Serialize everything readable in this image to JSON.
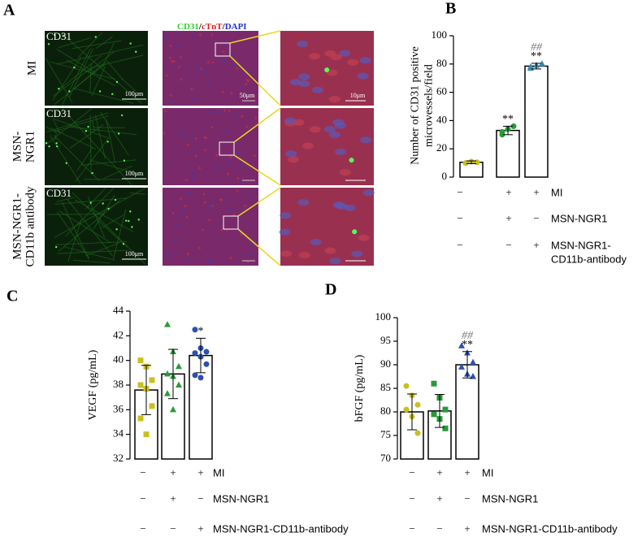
{
  "figure": {
    "panel_a": {
      "panel": "A",
      "header": [
        {
          "text": "CD31",
          "color": "#2fd12f"
        },
        {
          "text": "/",
          "color": "#000"
        },
        {
          "text": "cTnT",
          "color": "#e02020"
        },
        {
          "text": "/",
          "color": "#000"
        },
        {
          "text": "DAPI",
          "color": "#2030e0"
        }
      ],
      "rows": [
        {
          "label": [
            "MI"
          ],
          "stain": "CD31",
          "scale_left": "100μm",
          "scale_middle": "50μm",
          "scale_right": "10μm"
        },
        {
          "label": [
            "MSN-",
            "NGR1"
          ],
          "stain": "CD31",
          "scale_left": "100μm"
        },
        {
          "label": [
            "MSN-NGR1-",
            "CD11b antibody"
          ],
          "stain": "CD31",
          "scale_left": "100μm"
        }
      ]
    }
  },
  "chart_data": [
    {
      "type": "bar",
      "panel": "B",
      "ylabel": [
        "Number of CD31 positive",
        "microvessels/field"
      ],
      "values": [
        10.5,
        33,
        78.5
      ],
      "errors": [
        1,
        3,
        2
      ],
      "points": [
        [
          10,
          11,
          10.5,
          10
        ],
        [
          30,
          34,
          36,
          32
        ],
        [
          77,
          79,
          80,
          78
        ]
      ],
      "colors": [
        "#c8c020",
        "#2a9a3a",
        "#3a8ab0"
      ],
      "markers": [
        "circle",
        "circle",
        "triangle"
      ],
      "annotations": [
        [],
        [
          "**"
        ],
        [
          "##",
          "**"
        ]
      ],
      "ylim": [
        0,
        100
      ],
      "yticks": [
        0,
        20,
        40,
        60,
        80,
        100
      ],
      "conditions": [
        {
          "label": [
            "MI"
          ],
          "signs": [
            "−",
            "+",
            "+"
          ]
        },
        {
          "label": [
            "MSN-NGR1"
          ],
          "signs": [
            "−",
            "+",
            "−"
          ]
        },
        {
          "label": [
            "MSN-NGR1-",
            "CD11b-antibody"
          ],
          "signs": [
            "−",
            "−",
            "+"
          ]
        }
      ]
    },
    {
      "type": "bar",
      "panel": "C",
      "ylabel": [
        "VEGF (pg/mL)"
      ],
      "values": [
        37.6,
        38.9,
        40.4
      ],
      "errors": [
        2.0,
        2.0,
        1.4
      ],
      "points": [
        [
          40.0,
          39.5,
          38.4,
          38.0,
          37.7,
          36.3,
          35.3,
          34.0
        ],
        [
          42.9,
          40.7,
          39.5,
          38.9,
          38.7,
          38.0,
          37.3,
          36.0
        ],
        [
          42.5,
          41.0,
          40.7,
          40.6,
          40.3,
          39.7,
          38.8,
          38.6
        ]
      ],
      "colors": [
        "#c8c020",
        "#2a9a3a",
        "#2f4fb0"
      ],
      "markers": [
        "square",
        "triangle",
        "circle"
      ],
      "annotations": [
        [],
        [],
        [
          "*"
        ]
      ],
      "ylim": [
        32,
        44
      ],
      "yticks": [
        32,
        34,
        36,
        38,
        40,
        42,
        44
      ],
      "conditions": [
        {
          "label": [
            "MI"
          ],
          "signs": [
            "−",
            "+",
            "+"
          ]
        },
        {
          "label": [
            "MSN-NGR1"
          ],
          "signs": [
            "−",
            "+",
            "−"
          ]
        },
        {
          "label": [
            "MSN-NGR1-CD11b-antibody"
          ],
          "signs": [
            "−",
            "−",
            "+"
          ]
        }
      ]
    },
    {
      "type": "bar",
      "panel": "D",
      "ylabel": [
        "bFGF (pg/mL)"
      ],
      "values": [
        80.0,
        80.2,
        90.0
      ],
      "errors": [
        3.8,
        3.5,
        2.8
      ],
      "points": [
        [
          85.5,
          83.5,
          81.5,
          80.5,
          79.0,
          75.5
        ],
        [
          86.0,
          83.0,
          80.5,
          79.5,
          78.5,
          76.5
        ],
        [
          94.0,
          92.5,
          90.5,
          89.5,
          88.0,
          87.5
        ]
      ],
      "colors": [
        "#c8c020",
        "#2a9a3a",
        "#2f4fb0"
      ],
      "markers": [
        "circle",
        "square",
        "triangle"
      ],
      "annotations": [
        [],
        [],
        [
          "##",
          "**"
        ]
      ],
      "ylim": [
        70,
        100
      ],
      "yticks": [
        70,
        75,
        80,
        85,
        90,
        95,
        100
      ],
      "conditions": [
        {
          "label": [
            "MI"
          ],
          "signs": [
            "−",
            "+",
            "+"
          ]
        },
        {
          "label": [
            "MSN-NGR1"
          ],
          "signs": [
            "−",
            "+",
            "−"
          ]
        },
        {
          "label": [
            "MSN-NGR1-CD11b-antibody"
          ],
          "signs": [
            "−",
            "−",
            "+"
          ]
        }
      ]
    }
  ]
}
